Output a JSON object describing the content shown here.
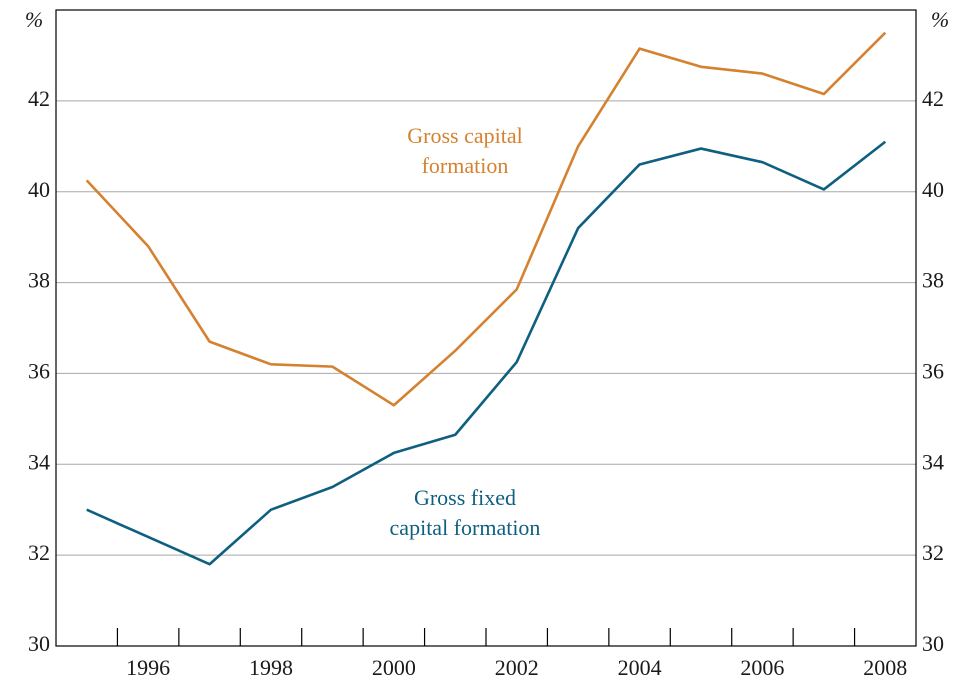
{
  "chart_data": {
    "type": "line",
    "y_unit": "%",
    "y2_unit": "%",
    "categories": [
      null,
      "1996",
      null,
      "1998",
      null,
      "2000",
      null,
      "2002",
      null,
      "2004",
      null,
      "2006",
      null,
      "2008"
    ],
    "series": [
      {
        "color": "#d4822f",
        "values": [
          40.25,
          38.8,
          36.7,
          36.2,
          36.15,
          35.3,
          36.5,
          37.85,
          41.0,
          43.15,
          42.75,
          42.6,
          42.15,
          43.5
        ]
      },
      {
        "color": "#0f5f80",
        "values": [
          33.0,
          32.4,
          31.8,
          33.0,
          33.5,
          34.25,
          34.65,
          36.25,
          39.2,
          40.6,
          40.95,
          40.65,
          40.05,
          41.1
        ]
      }
    ],
    "annotations": [
      {
        "lines": [
          "Gross capital",
          "formation"
        ],
        "color": "#d4822f"
      },
      {
        "lines": [
          "Gross fixed",
          "capital formation"
        ],
        "color": "#0f5f80"
      }
    ],
    "ylim": [
      30,
      44
    ],
    "yticks": [
      30,
      32,
      34,
      36,
      38,
      40,
      42
    ],
    "y2lim": [
      30,
      44
    ],
    "y2ticks": [
      30,
      32,
      34,
      36,
      38,
      40,
      42
    ],
    "grid": true
  }
}
